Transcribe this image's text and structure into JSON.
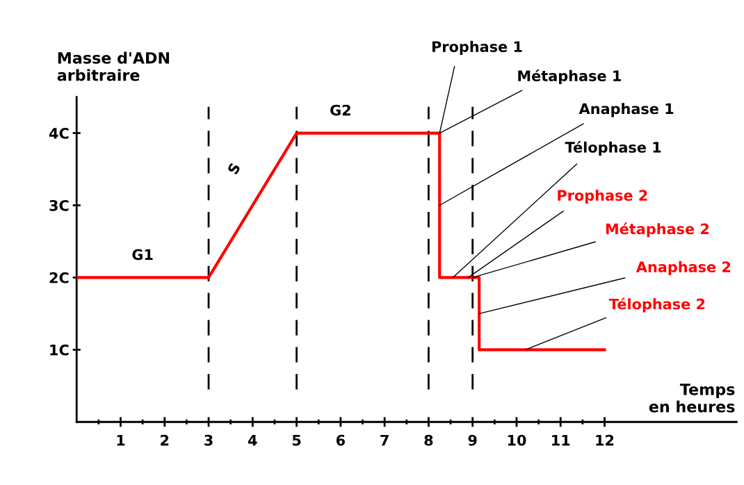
{
  "chart_data": {
    "type": "line",
    "xlabel": "Temps\nen heures",
    "ylabel": "Masse d'ADN\narbitraire",
    "x": [
      0,
      3,
      5,
      8.25,
      8.25,
      9.15,
      9.15,
      12
    ],
    "series": [
      {
        "color": "#ff0000",
        "values": [
          2,
          2,
          4,
          4,
          2,
          2,
          1,
          1
        ]
      }
    ],
    "xlim": [
      0,
      15
    ],
    "xticks": [
      1,
      2,
      3,
      4,
      5,
      6,
      7,
      8,
      9,
      10,
      11,
      12
    ],
    "ylim": [
      0,
      4.5
    ],
    "yticks": [
      {
        "value": 1,
        "label": "1C"
      },
      {
        "value": 2,
        "label": "2C"
      },
      {
        "value": 3,
        "label": "3C"
      },
      {
        "value": 4,
        "label": "4C"
      }
    ],
    "ref_lines": [
      {
        "axis": "x",
        "value": 3,
        "color": "#000000",
        "line_style": "dashed"
      },
      {
        "axis": "x",
        "value": 5,
        "color": "#000000",
        "line_style": "dashed"
      },
      {
        "axis": "x",
        "value": 8,
        "color": "#000000",
        "line_style": "dashed"
      },
      {
        "axis": "x",
        "value": 9,
        "color": "#000000",
        "line_style": "dashed"
      }
    ],
    "annotations": [
      {
        "text": "G1",
        "x": 1.5,
        "y": 2
      },
      "S",
      {
        "text": "G2",
        "x": 6,
        "y": 4
      },
      {
        "text": "Prophase 1",
        "x": 8.25,
        "y": 4
      },
      {
        "text": "Métaphase 1",
        "x": 8.25,
        "y": 4
      },
      {
        "text": "Anaphase 1",
        "x": 8.25,
        "y": 3
      },
      {
        "text": "Télophase 1",
        "x": 8.55,
        "y": 2
      },
      {
        "text": "Prophase 2",
        "x": 8.9,
        "y": 2
      },
      {
        "text": "Métaphase 2",
        "x": 9.0,
        "y": 2
      },
      {
        "text": "Anaphase 2",
        "x": 9.15,
        "y": 1.5
      },
      {
        "text": "Télophase 2",
        "x": 10.2,
        "y": 1
      }
    ],
    "grid": false,
    "legend": false,
    "marker": "none",
    "line_style": "solid"
  }
}
